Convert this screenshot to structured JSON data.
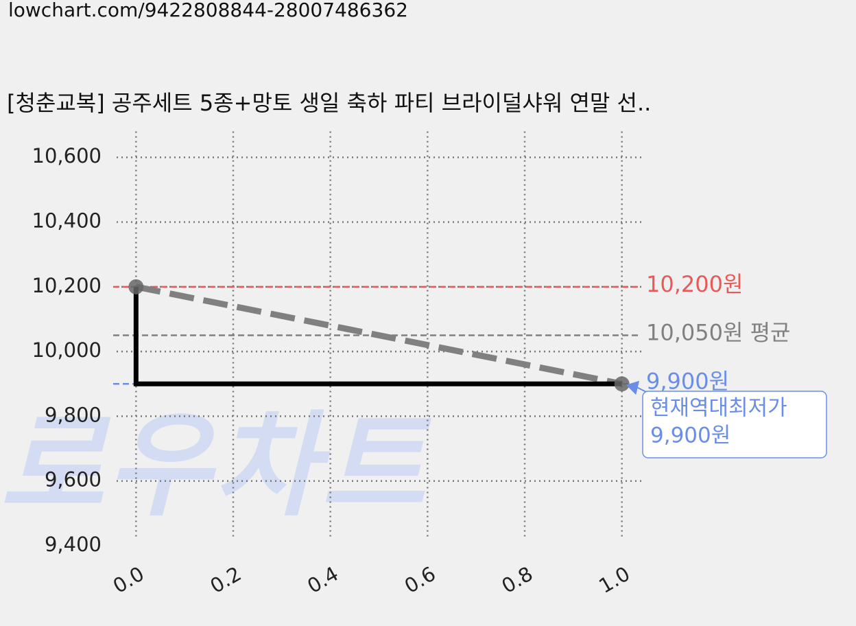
{
  "chart_data": {
    "type": "line",
    "url": "lowchart.com/9422808844-28007486362",
    "title": "[청춘교복] 공주세트 5종+망토 생일 축하 파티 브라이덜샤워 연말 선..",
    "watermark": "로우차트",
    "x": [
      0,
      1
    ],
    "values": [
      10200,
      9900
    ],
    "color": "#000000",
    "trend_color": "#808080",
    "xlim": [
      -0.04,
      1.04
    ],
    "ylim": [
      9400,
      10680
    ],
    "xticks": [
      {
        "value": 0,
        "label": "0.0"
      },
      {
        "value": 0.2,
        "label": "0.2"
      },
      {
        "value": 0.4,
        "label": "0.4"
      },
      {
        "value": 0.6,
        "label": "0.6"
      },
      {
        "value": 0.8,
        "label": "0.8"
      },
      {
        "value": 1,
        "label": "1.0"
      }
    ],
    "yticks": [
      {
        "value": 9400,
        "label": "9,400"
      },
      {
        "value": 9600,
        "label": "9,600"
      },
      {
        "value": 9800,
        "label": "9,800"
      },
      {
        "value": 10000,
        "label": "10,000"
      },
      {
        "value": 10200,
        "label": "10,200"
      },
      {
        "value": 10400,
        "label": "10,400"
      },
      {
        "value": 10600,
        "label": "10,600"
      }
    ],
    "grid": true,
    "hlines": [
      {
        "value": 10200,
        "label": "10,200원",
        "color": "#e85a5a"
      },
      {
        "value": 10050,
        "label": "10,050원 평균",
        "color": "#808080"
      },
      {
        "value": 9900,
        "label": "9,900원",
        "color": "#6a8ee8"
      }
    ],
    "annotation": {
      "lines": [
        "현재역대최저가",
        "9,900원"
      ],
      "x": 1,
      "y": 9900,
      "color": "#6a8ee8"
    }
  }
}
